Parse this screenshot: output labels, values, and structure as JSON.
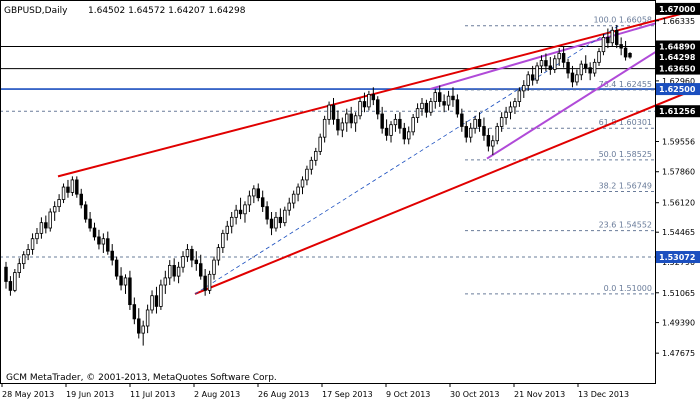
{
  "header": {
    "symbol_label": "GBPUSD,Daily",
    "ohlc_label": "1.64502 1.64572 1.64207 1.64298"
  },
  "footer": {
    "copyright": "GCM MetaTrader, © 2001-2013, MetaQuotes Software Corp."
  },
  "colors": {
    "background": "#ffffff",
    "frame": "#000000",
    "candle_up_body": "#ffffff",
    "candle_down_body": "#000000",
    "candle_wick": "#000000",
    "channel_red": "#e00000",
    "channel_purple": "#b04ad8",
    "horizontal_line": "#000000",
    "blue_level": "#1b4fbf",
    "fib_dashed": "#6a7c9a",
    "fib_text": "#6a7c9a",
    "price_label_bg": "#000000",
    "price_label_fg": "#ffffff",
    "blue_label_bg": "#1b4fbf"
  },
  "chart_data": {
    "type": "candlestick",
    "title": "GBPUSD,Daily",
    "grid": false,
    "y_axis": {
      "ylim": [
        1.46,
        1.675
      ],
      "tick_labels": [
        "1.66335",
        "1.64890",
        "1.62960",
        "1.61255",
        "1.59556",
        "1.57860",
        "1.56120",
        "1.54465",
        "1.52790",
        "1.51065",
        "1.49390",
        "1.47675"
      ]
    },
    "x_axis": {
      "tick_labels": [
        "28 May 2013",
        "19 Jun 2013",
        "11 Jul 2013",
        "2 Aug 2013",
        "26 Aug 2013",
        "17 Sep 2013",
        "9 Oct 2013",
        "30 Oct 2013",
        "21 Nov 2013",
        "13 Dec 2013"
      ]
    },
    "last_ohlc": {
      "open": 1.64502,
      "high": 1.64572,
      "low": 1.64207,
      "close": 1.64298
    },
    "price_labels": [
      {
        "text": "1.67000",
        "value": 1.67,
        "style": "dark"
      },
      {
        "text": "1.64890",
        "value": 1.6489,
        "style": "dark"
      },
      {
        "text": "1.64298",
        "value": 1.64298,
        "style": "dark"
      },
      {
        "text": "1.63650",
        "value": 1.6365,
        "style": "dark"
      },
      {
        "text": "1.62500",
        "value": 1.625,
        "style": "blue"
      },
      {
        "text": "1.61256",
        "value": 1.61256,
        "style": "dark"
      },
      {
        "text": "1.53072",
        "value": 1.53072,
        "style": "blue"
      }
    ],
    "horizontal_levels": [
      {
        "value": 1.6489,
        "style": "solid"
      },
      {
        "value": 1.6365,
        "style": "solid"
      },
      {
        "value": 1.625,
        "style": "blue"
      },
      {
        "value": 1.61256,
        "style": "dashed"
      },
      {
        "value": 1.53072,
        "style": "dashed"
      }
    ],
    "fibonacci": [
      {
        "text": "100.0 1.66058",
        "value": 1.66058
      },
      {
        "text": "76.4 1.62455",
        "value": 1.62455
      },
      {
        "text": "61.8 1.60301",
        "value": 1.60301
      },
      {
        "text": "50.0 1.58525",
        "value": 1.58525
      },
      {
        "text": "38.2 1.56749",
        "value": 1.56749
      },
      {
        "text": "23.6 1.54552",
        "value": 1.54552
      },
      {
        "text": "0.0 1.51000",
        "value": 1.51
      }
    ],
    "trendlines": [
      {
        "name": "upper-red",
        "color": "red",
        "from": [
          58,
          1.576
        ],
        "to": [
          700,
          1.67
        ]
      },
      {
        "name": "lower-red",
        "color": "red",
        "from": [
          195,
          1.51
        ],
        "to": [
          700,
          1.626
        ]
      },
      {
        "name": "upper-purple",
        "color": "purple",
        "from": [
          430,
          1.625
        ],
        "to": [
          656,
          1.662
        ]
      },
      {
        "name": "lower-purple",
        "color": "purple",
        "from": [
          487,
          1.586
        ],
        "to": [
          656,
          1.646
        ]
      },
      {
        "name": "fib-diagonal",
        "color": "blue-dashed",
        "from": [
          195,
          1.51
        ],
        "to": [
          620,
          1.661
        ]
      }
    ],
    "candles": [
      [
        1.525,
        1.528,
        1.513,
        1.517
      ],
      [
        1.517,
        1.52,
        1.509,
        1.512
      ],
      [
        1.512,
        1.524,
        1.511,
        1.522
      ],
      [
        1.522,
        1.53,
        1.519,
        1.527
      ],
      [
        1.527,
        1.534,
        1.524,
        1.532
      ],
      [
        1.532,
        1.538,
        1.529,
        1.535
      ],
      [
        1.535,
        1.544,
        1.532,
        1.541
      ],
      [
        1.541,
        1.547,
        1.538,
        1.544
      ],
      [
        1.544,
        1.553,
        1.541,
        1.55
      ],
      [
        1.55,
        1.554,
        1.544,
        1.547
      ],
      [
        1.547,
        1.558,
        1.545,
        1.556
      ],
      [
        1.556,
        1.562,
        1.551,
        1.559
      ],
      [
        1.559,
        1.566,
        1.556,
        1.563
      ],
      [
        1.563,
        1.572,
        1.561,
        1.57
      ],
      [
        1.57,
        1.574,
        1.564,
        1.567
      ],
      [
        1.567,
        1.576,
        1.565,
        1.574
      ],
      [
        1.574,
        1.576,
        1.564,
        1.566
      ],
      [
        1.566,
        1.569,
        1.558,
        1.56
      ],
      [
        1.56,
        1.562,
        1.55,
        1.552
      ],
      [
        1.552,
        1.556,
        1.545,
        1.547
      ],
      [
        1.547,
        1.55,
        1.54,
        1.542
      ],
      [
        1.542,
        1.546,
        1.535,
        1.538
      ],
      [
        1.538,
        1.544,
        1.533,
        1.541
      ],
      [
        1.541,
        1.545,
        1.532,
        1.534
      ],
      [
        1.534,
        1.538,
        1.526,
        1.529
      ],
      [
        1.529,
        1.531,
        1.518,
        1.52
      ],
      [
        1.52,
        1.525,
        1.512,
        1.515
      ],
      [
        1.515,
        1.521,
        1.51,
        1.519
      ],
      [
        1.519,
        1.523,
        1.501,
        1.504
      ],
      [
        1.504,
        1.508,
        1.493,
        1.496
      ],
      [
        1.496,
        1.502,
        1.485,
        1.488
      ],
      [
        1.488,
        1.495,
        1.481,
        1.492
      ],
      [
        1.492,
        1.504,
        1.488,
        1.501
      ],
      [
        1.501,
        1.512,
        1.499,
        1.509
      ],
      [
        1.509,
        1.514,
        1.499,
        1.503
      ],
      [
        1.503,
        1.518,
        1.501,
        1.515
      ],
      [
        1.515,
        1.523,
        1.51,
        1.519
      ],
      [
        1.519,
        1.529,
        1.515,
        1.526
      ],
      [
        1.526,
        1.53,
        1.517,
        1.52
      ],
      [
        1.52,
        1.528,
        1.516,
        1.525
      ],
      [
        1.525,
        1.534,
        1.522,
        1.531
      ],
      [
        1.531,
        1.538,
        1.528,
        1.535
      ],
      [
        1.535,
        1.537,
        1.525,
        1.529
      ],
      [
        1.529,
        1.534,
        1.523,
        1.527
      ],
      [
        1.527,
        1.532,
        1.518,
        1.52
      ],
      [
        1.52,
        1.524,
        1.509,
        1.512
      ],
      [
        1.512,
        1.523,
        1.51,
        1.521
      ],
      [
        1.521,
        1.531,
        1.518,
        1.529
      ],
      [
        1.529,
        1.538,
        1.526,
        1.536
      ],
      [
        1.536,
        1.546,
        1.533,
        1.544
      ],
      [
        1.544,
        1.551,
        1.54,
        1.548
      ],
      [
        1.548,
        1.556,
        1.544,
        1.553
      ],
      [
        1.553,
        1.56,
        1.549,
        1.557
      ],
      [
        1.557,
        1.564,
        1.552,
        1.555
      ],
      [
        1.555,
        1.562,
        1.55,
        1.56
      ],
      [
        1.56,
        1.568,
        1.556,
        1.565
      ],
      [
        1.565,
        1.571,
        1.561,
        1.569
      ],
      [
        1.569,
        1.572,
        1.562,
        1.564
      ],
      [
        1.564,
        1.568,
        1.556,
        1.559
      ],
      [
        1.559,
        1.562,
        1.549,
        1.552
      ],
      [
        1.552,
        1.556,
        1.543,
        1.547
      ],
      [
        1.547,
        1.556,
        1.545,
        1.553
      ],
      [
        1.553,
        1.558,
        1.547,
        1.55
      ],
      [
        1.55,
        1.559,
        1.548,
        1.557
      ],
      [
        1.557,
        1.564,
        1.554,
        1.561
      ],
      [
        1.561,
        1.568,
        1.558,
        1.566
      ],
      [
        1.566,
        1.572,
        1.562,
        1.57
      ],
      [
        1.57,
        1.576,
        1.566,
        1.574
      ],
      [
        1.574,
        1.582,
        1.571,
        1.58
      ],
      [
        1.58,
        1.587,
        1.577,
        1.585
      ],
      [
        1.585,
        1.592,
        1.582,
        1.59
      ],
      [
        1.59,
        1.6,
        1.588,
        1.598
      ],
      [
        1.598,
        1.61,
        1.595,
        1.608
      ],
      [
        1.608,
        1.618,
        1.605,
        1.616
      ],
      [
        1.616,
        1.62,
        1.605,
        1.608
      ],
      [
        1.608,
        1.613,
        1.599,
        1.602
      ],
      [
        1.602,
        1.609,
        1.598,
        1.606
      ],
      [
        1.606,
        1.614,
        1.601,
        1.611
      ],
      [
        1.611,
        1.615,
        1.603,
        1.606
      ],
      [
        1.606,
        1.612,
        1.601,
        1.61
      ],
      [
        1.61,
        1.62,
        1.608,
        1.618
      ],
      [
        1.618,
        1.623,
        1.612,
        1.615
      ],
      [
        1.615,
        1.624,
        1.613,
        1.622
      ],
      [
        1.622,
        1.626,
        1.616,
        1.619
      ],
      [
        1.619,
        1.621,
        1.608,
        1.611
      ],
      [
        1.611,
        1.615,
        1.6,
        1.603
      ],
      [
        1.603,
        1.608,
        1.596,
        1.599
      ],
      [
        1.599,
        1.607,
        1.595,
        1.605
      ],
      [
        1.605,
        1.611,
        1.601,
        1.608
      ],
      [
        1.608,
        1.612,
        1.6,
        1.603
      ],
      [
        1.603,
        1.606,
        1.594,
        1.597
      ],
      [
        1.597,
        1.604,
        1.594,
        1.601
      ],
      [
        1.601,
        1.611,
        1.599,
        1.609
      ],
      [
        1.609,
        1.617,
        1.606,
        1.614
      ],
      [
        1.614,
        1.62,
        1.61,
        1.617
      ],
      [
        1.617,
        1.619,
        1.609,
        1.612
      ],
      [
        1.612,
        1.62,
        1.61,
        1.618
      ],
      [
        1.618,
        1.625,
        1.614,
        1.623
      ],
      [
        1.623,
        1.627,
        1.615,
        1.618
      ],
      [
        1.618,
        1.622,
        1.612,
        1.616
      ],
      [
        1.616,
        1.624,
        1.613,
        1.621
      ],
      [
        1.621,
        1.626,
        1.615,
        1.619
      ],
      [
        1.619,
        1.622,
        1.609,
        1.611
      ],
      [
        1.611,
        1.614,
        1.601,
        1.604
      ],
      [
        1.604,
        1.607,
        1.595,
        1.598
      ],
      [
        1.598,
        1.606,
        1.595,
        1.603
      ],
      [
        1.603,
        1.61,
        1.6,
        1.608
      ],
      [
        1.608,
        1.612,
        1.601,
        1.604
      ],
      [
        1.604,
        1.609,
        1.596,
        1.599
      ],
      [
        1.599,
        1.603,
        1.59,
        1.593
      ],
      [
        1.593,
        1.599,
        1.588,
        1.596
      ],
      [
        1.596,
        1.606,
        1.594,
        1.604
      ],
      [
        1.604,
        1.612,
        1.601,
        1.609
      ],
      [
        1.609,
        1.615,
        1.605,
        1.612
      ],
      [
        1.612,
        1.618,
        1.608,
        1.615
      ],
      [
        1.615,
        1.62,
        1.611,
        1.618
      ],
      [
        1.618,
        1.626,
        1.615,
        1.624
      ],
      [
        1.624,
        1.63,
        1.62,
        1.627
      ],
      [
        1.627,
        1.635,
        1.624,
        1.633
      ],
      [
        1.633,
        1.638,
        1.627,
        1.63
      ],
      [
        1.63,
        1.64,
        1.628,
        1.638
      ],
      [
        1.638,
        1.644,
        1.634,
        1.641
      ],
      [
        1.641,
        1.645,
        1.635,
        1.638
      ],
      [
        1.638,
        1.643,
        1.633,
        1.636
      ],
      [
        1.636,
        1.644,
        1.634,
        1.642
      ],
      [
        1.642,
        1.648,
        1.638,
        1.645
      ],
      [
        1.645,
        1.649,
        1.637,
        1.64
      ],
      [
        1.64,
        1.642,
        1.631,
        1.634
      ],
      [
        1.634,
        1.638,
        1.626,
        1.629
      ],
      [
        1.629,
        1.636,
        1.627,
        1.633
      ],
      [
        1.633,
        1.641,
        1.63,
        1.639
      ],
      [
        1.639,
        1.644,
        1.634,
        1.637
      ],
      [
        1.637,
        1.64,
        1.63,
        1.634
      ],
      [
        1.634,
        1.642,
        1.632,
        1.64
      ],
      [
        1.64,
        1.648,
        1.638,
        1.646
      ],
      [
        1.646,
        1.656,
        1.644,
        1.654
      ],
      [
        1.654,
        1.659,
        1.648,
        1.651
      ],
      [
        1.651,
        1.66,
        1.649,
        1.658
      ],
      [
        1.658,
        1.661,
        1.648,
        1.65
      ],
      [
        1.65,
        1.654,
        1.644,
        1.648
      ],
      [
        1.648,
        1.652,
        1.641,
        1.643
      ],
      [
        1.64502,
        1.64572,
        1.64207,
        1.64298
      ]
    ]
  }
}
